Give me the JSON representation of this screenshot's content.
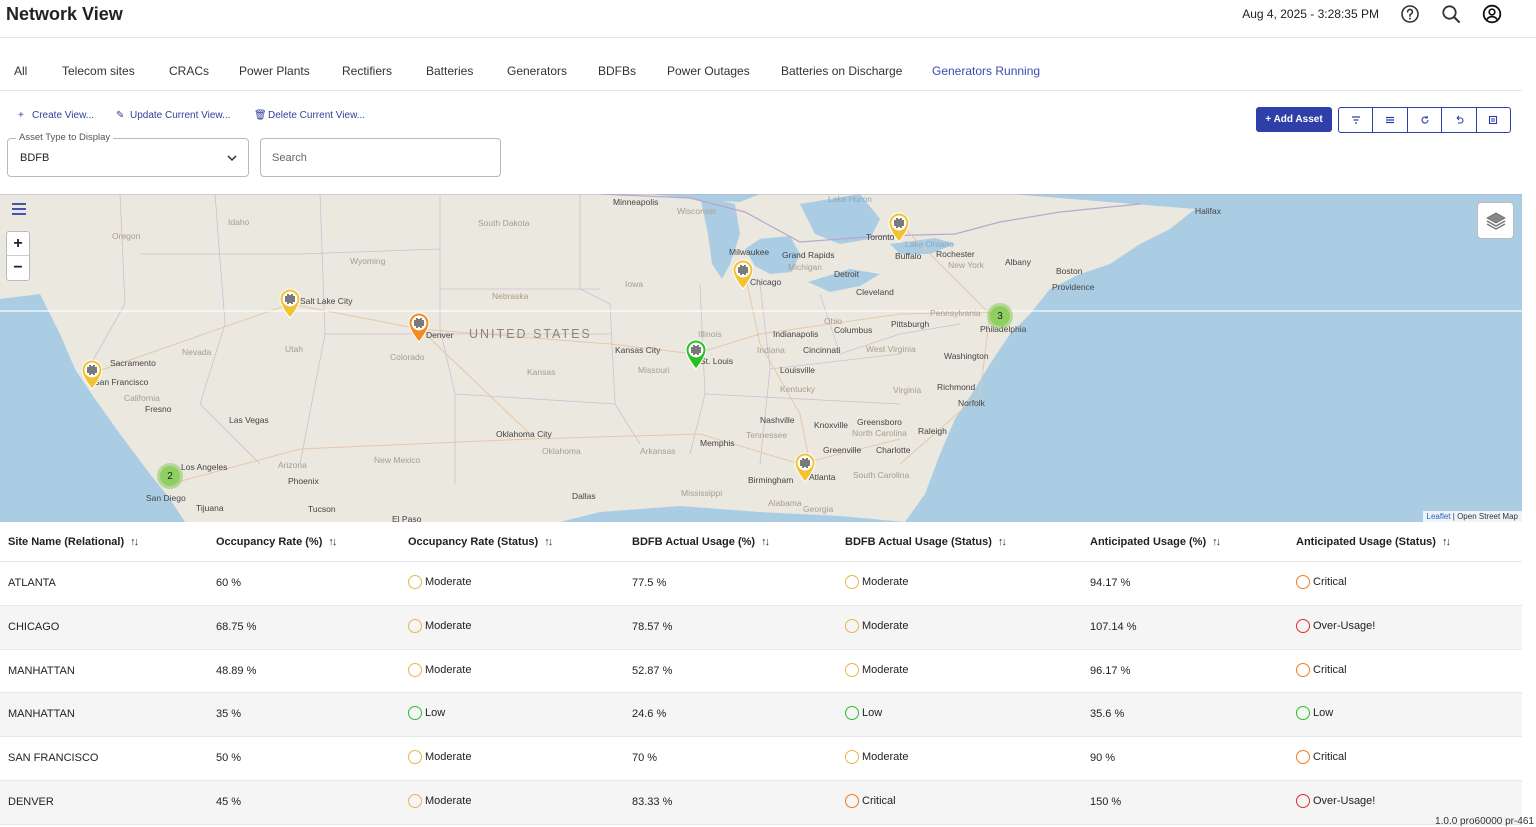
{
  "header": {
    "title": "Network View",
    "datetime": "Aug 4, 2025 - 3:28:35 PM",
    "icons": [
      "help-icon",
      "search-icon",
      "account-icon"
    ]
  },
  "tabs": [
    {
      "label": "All"
    },
    {
      "label": "Telecom sites"
    },
    {
      "label": "CRACs"
    },
    {
      "label": "Power Plants"
    },
    {
      "label": "Rectifiers"
    },
    {
      "label": "Batteries"
    },
    {
      "label": "Generators"
    },
    {
      "label": "BDFBs"
    },
    {
      "label": "Power Outages"
    },
    {
      "label": "Batteries on Discharge"
    },
    {
      "label": "Generators Running",
      "active": true
    }
  ],
  "view_actions": {
    "create": "Create View...",
    "update": "Update Current View...",
    "delete": "Delete Current View..."
  },
  "asset_select": {
    "label": "Asset Type to Display",
    "value": "BDFB"
  },
  "search": {
    "placeholder": "Search"
  },
  "toolbar": {
    "add_asset": "+ Add Asset",
    "tools": [
      "filter-icon",
      "list-icon",
      "refresh-icon",
      "undo-icon",
      "export-icon"
    ]
  },
  "map": {
    "country_label": "UNITED STATES",
    "places": [
      {
        "name": "Minneapolis"
      },
      {
        "name": "Wisconsin"
      },
      {
        "name": "South Dakota"
      },
      {
        "name": "Lake Huron"
      },
      {
        "name": "Toronto"
      },
      {
        "name": "Lake Ontario"
      },
      {
        "name": "Halifax"
      },
      {
        "name": "Oregon"
      },
      {
        "name": "Idaho"
      },
      {
        "name": "Wyoming"
      },
      {
        "name": "Nebraska"
      },
      {
        "name": "Iowa"
      },
      {
        "name": "Milwaukee"
      },
      {
        "name": "Grand Rapids"
      },
      {
        "name": "Michigan"
      },
      {
        "name": "Detroit"
      },
      {
        "name": "Rochester"
      },
      {
        "name": "Buffalo"
      },
      {
        "name": "New York"
      },
      {
        "name": "Albany"
      },
      {
        "name": "Boston"
      },
      {
        "name": "Providence"
      },
      {
        "name": "Chicago"
      },
      {
        "name": "Cleveland"
      },
      {
        "name": "Salt Lake City"
      },
      {
        "name": "Nevada"
      },
      {
        "name": "Utah"
      },
      {
        "name": "Denver"
      },
      {
        "name": "Colorado"
      },
      {
        "name": "Kansas City"
      },
      {
        "name": "Illinois"
      },
      {
        "name": "Indianapolis"
      },
      {
        "name": "Ohio"
      },
      {
        "name": "Columbus"
      },
      {
        "name": "Pittsburgh"
      },
      {
        "name": "Pennsylvania"
      },
      {
        "name": "Philadelphia"
      },
      {
        "name": "Sacramento"
      },
      {
        "name": "San Francisco"
      },
      {
        "name": "California"
      },
      {
        "name": "Fresno"
      },
      {
        "name": "Kansas"
      },
      {
        "name": "Missouri"
      },
      {
        "name": "St. Louis"
      },
      {
        "name": "Indiana"
      },
      {
        "name": "Cincinnati"
      },
      {
        "name": "West Virginia"
      },
      {
        "name": "Washington"
      },
      {
        "name": "Louisville"
      },
      {
        "name": "Kentucky"
      },
      {
        "name": "Virginia"
      },
      {
        "name": "Richmond"
      },
      {
        "name": "Norfolk"
      },
      {
        "name": "Las Vegas"
      },
      {
        "name": "Oklahoma City"
      },
      {
        "name": "Oklahoma"
      },
      {
        "name": "Nashville"
      },
      {
        "name": "Tennessee"
      },
      {
        "name": "Knoxville"
      },
      {
        "name": "Greensboro"
      },
      {
        "name": "North Carolina"
      },
      {
        "name": "Raleigh"
      },
      {
        "name": "Memphis"
      },
      {
        "name": "Arkansas"
      },
      {
        "name": "Greenville"
      },
      {
        "name": "Charlotte"
      },
      {
        "name": "Los Angeles"
      },
      {
        "name": "Arizona"
      },
      {
        "name": "New Mexico"
      },
      {
        "name": "Phoenix"
      },
      {
        "name": "San Diego"
      },
      {
        "name": "Tijuana"
      },
      {
        "name": "Tucson"
      },
      {
        "name": "El Paso"
      },
      {
        "name": "Dallas"
      },
      {
        "name": "Mississippi"
      },
      {
        "name": "Birmingham"
      },
      {
        "name": "Alabama"
      },
      {
        "name": "Atlanta"
      },
      {
        "name": "Georgia"
      },
      {
        "name": "South Carolina"
      }
    ],
    "markers": [
      {
        "site": "Toronto",
        "color": "#f2c230"
      },
      {
        "site": "Chicago",
        "color": "#f2c230"
      },
      {
        "site": "Salt Lake City",
        "color": "#f2c230"
      },
      {
        "site": "Denver",
        "color": "#f28a1e"
      },
      {
        "site": "St. Louis",
        "color": "#27c221"
      },
      {
        "site": "San Francisco",
        "color": "#f2c230"
      },
      {
        "site": "Atlanta",
        "color": "#f2c230"
      }
    ],
    "clusters": [
      {
        "site": "Philadelphia",
        "count": "3"
      },
      {
        "site": "Los Angeles",
        "count": "2"
      }
    ],
    "attribution": {
      "leaflet": "Leaflet",
      "osm": "| Open Street Map"
    }
  },
  "table": {
    "columns": [
      "Site Name (Relational)",
      "Occupancy Rate  (%)",
      "Occupancy Rate (Status)",
      "BDFB Actual Usage  (%)",
      "BDFB Actual Usage (Status)",
      "Anticipated Usage  (%)",
      "Anticipated Usage (Status)"
    ],
    "sort_glyph": "↑↓",
    "status_colors": {
      "Low": "#2bc02b",
      "Moderate": "#e5b84a",
      "Critical": "#ee7b22",
      "Over-Usage!": "#e02d2d"
    },
    "rows": [
      {
        "site": "ATLANTA",
        "occ": "60 %",
        "occ_status": "Moderate",
        "bdfb": "77.5 %",
        "bdfb_status": "Moderate",
        "ant": "94.17 %",
        "ant_status": "Critical"
      },
      {
        "site": "CHICAGO",
        "occ": "68.75 %",
        "occ_status": "Moderate",
        "bdfb": "78.57 %",
        "bdfb_status": "Moderate",
        "ant": "107.14 %",
        "ant_status": "Over-Usage!"
      },
      {
        "site": "MANHATTAN",
        "occ": "48.89 %",
        "occ_status": "Moderate",
        "bdfb": "52.87 %",
        "bdfb_status": "Moderate",
        "ant": "96.17 %",
        "ant_status": "Critical"
      },
      {
        "site": "MANHATTAN",
        "occ": "35 %",
        "occ_status": "Low",
        "bdfb": "24.6 %",
        "bdfb_status": "Low",
        "ant": "35.6 %",
        "ant_status": "Low"
      },
      {
        "site": "SAN FRANCISCO",
        "occ": "50 %",
        "occ_status": "Moderate",
        "bdfb": "70 %",
        "bdfb_status": "Moderate",
        "ant": "90 %",
        "ant_status": "Critical"
      },
      {
        "site": "DENVER",
        "occ": "45 %",
        "occ_status": "Moderate",
        "bdfb": "83.33 %",
        "bdfb_status": "Critical",
        "ant": "150 %",
        "ant_status": "Over-Usage!"
      }
    ]
  },
  "version": "1.0.0 pro60000 pr-461"
}
